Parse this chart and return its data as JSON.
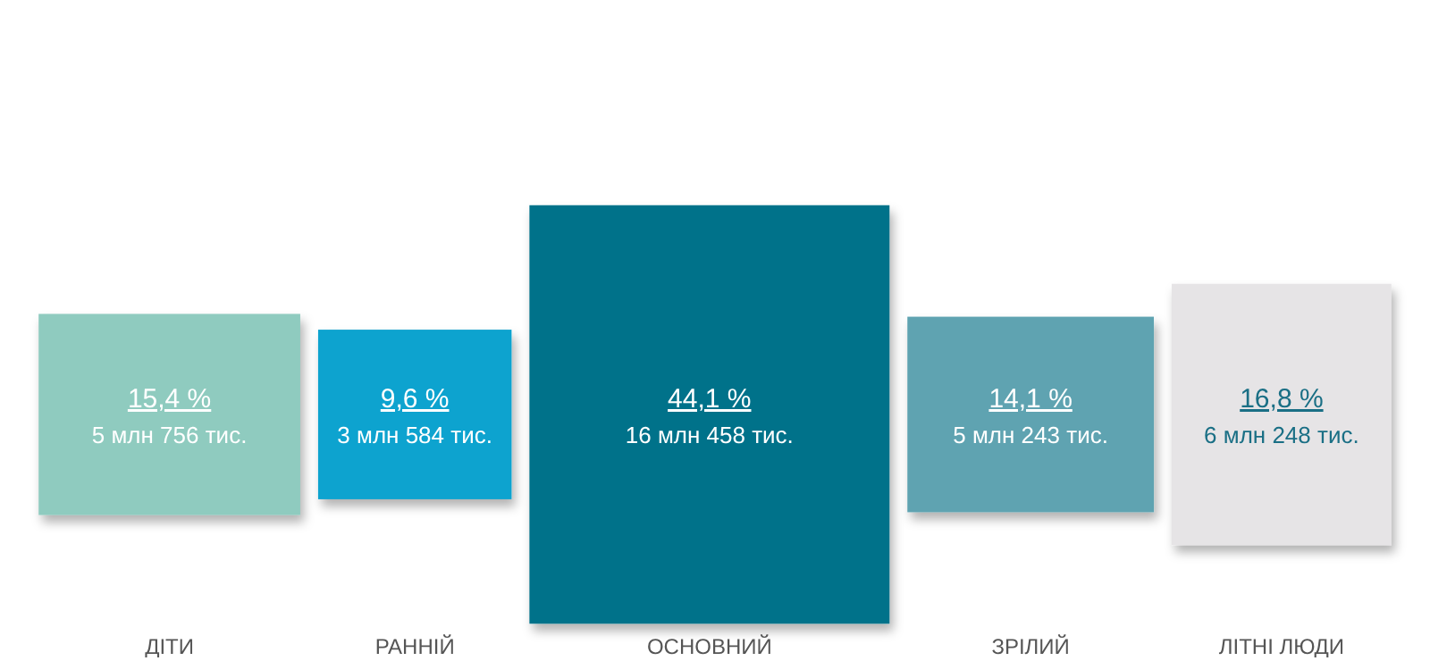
{
  "chart_data": {
    "type": "other",
    "categories": [
      "ДІТИ",
      "РАННІЙ",
      "ОСНОВНИЙ",
      "ЗРІЛИЙ",
      "ЛІТНІ ЛЮДИ"
    ],
    "values": [
      15.4,
      9.6,
      44.1,
      14.1,
      16.8
    ],
    "value_labels": [
      "15,4 %",
      "9,6 %",
      "44,1 %",
      "14,1 %",
      "16,8 %"
    ],
    "colors": [
      "#8fcbbf",
      "#0fa3cf",
      "#00728a",
      "#5fa3b1",
      "#e6e4e6"
    ],
    "annotations": [
      {
        "text": "5 млн 756 тис.",
        "x": "ДІТИ"
      },
      {
        "text": "3 млн 584 тис.",
        "x": "РАННІЙ"
      },
      {
        "text": "16 млн 458 тис.",
        "x": "ОСНОВНИЙ"
      },
      {
        "text": "5 млн 243 тис.",
        "x": "ЗРІЛИЙ"
      },
      {
        "text": "6 млн 248 тис.",
        "x": "ЛІТНІ ЛЮДИ"
      }
    ]
  }
}
